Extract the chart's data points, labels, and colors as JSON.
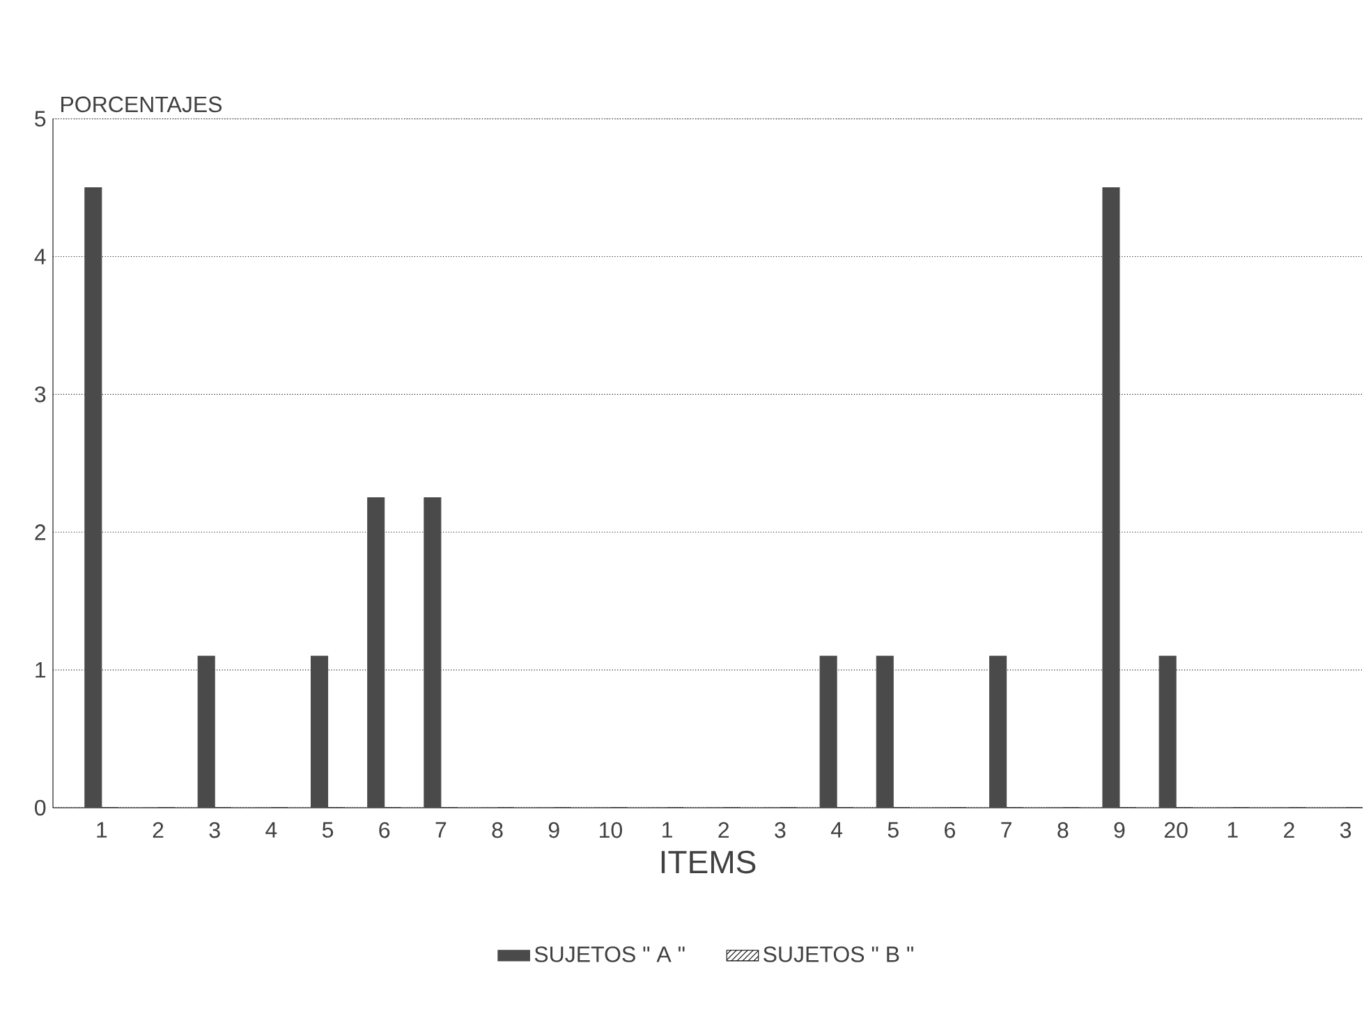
{
  "chart_data": {
    "type": "bar",
    "ylabel": "PORCENTAJES",
    "xlabel": "ITEMS",
    "categories": [
      "1",
      "2",
      "3",
      "4",
      "5",
      "6",
      "7",
      "8",
      "9",
      "10",
      "1",
      "2",
      "3",
      "4",
      "5",
      "6",
      "7",
      "8",
      "9",
      "20",
      "1",
      "2",
      "3"
    ],
    "series": [
      {
        "name": "SUJETOS \" A \"",
        "color": "#4a4a4a",
        "values": [
          4.5,
          0,
          1.1,
          0,
          1.1,
          2.25,
          2.25,
          0,
          0,
          0,
          0,
          0,
          0,
          1.1,
          1.1,
          0,
          1.1,
          0,
          4.5,
          1.1,
          0,
          0,
          0
        ]
      },
      {
        "name": "SUJETOS \" B \"",
        "color": "#000000",
        "values": [
          0,
          0,
          0,
          0,
          0,
          0,
          0,
          0,
          0,
          0,
          0,
          0,
          0,
          0,
          0,
          0,
          0,
          0,
          0,
          0,
          0,
          0,
          0
        ]
      }
    ],
    "ylim": [
      0,
      5
    ],
    "yticks": [
      0,
      1,
      2,
      3,
      4,
      5
    ],
    "grid": "y",
    "legend": "bottom"
  }
}
